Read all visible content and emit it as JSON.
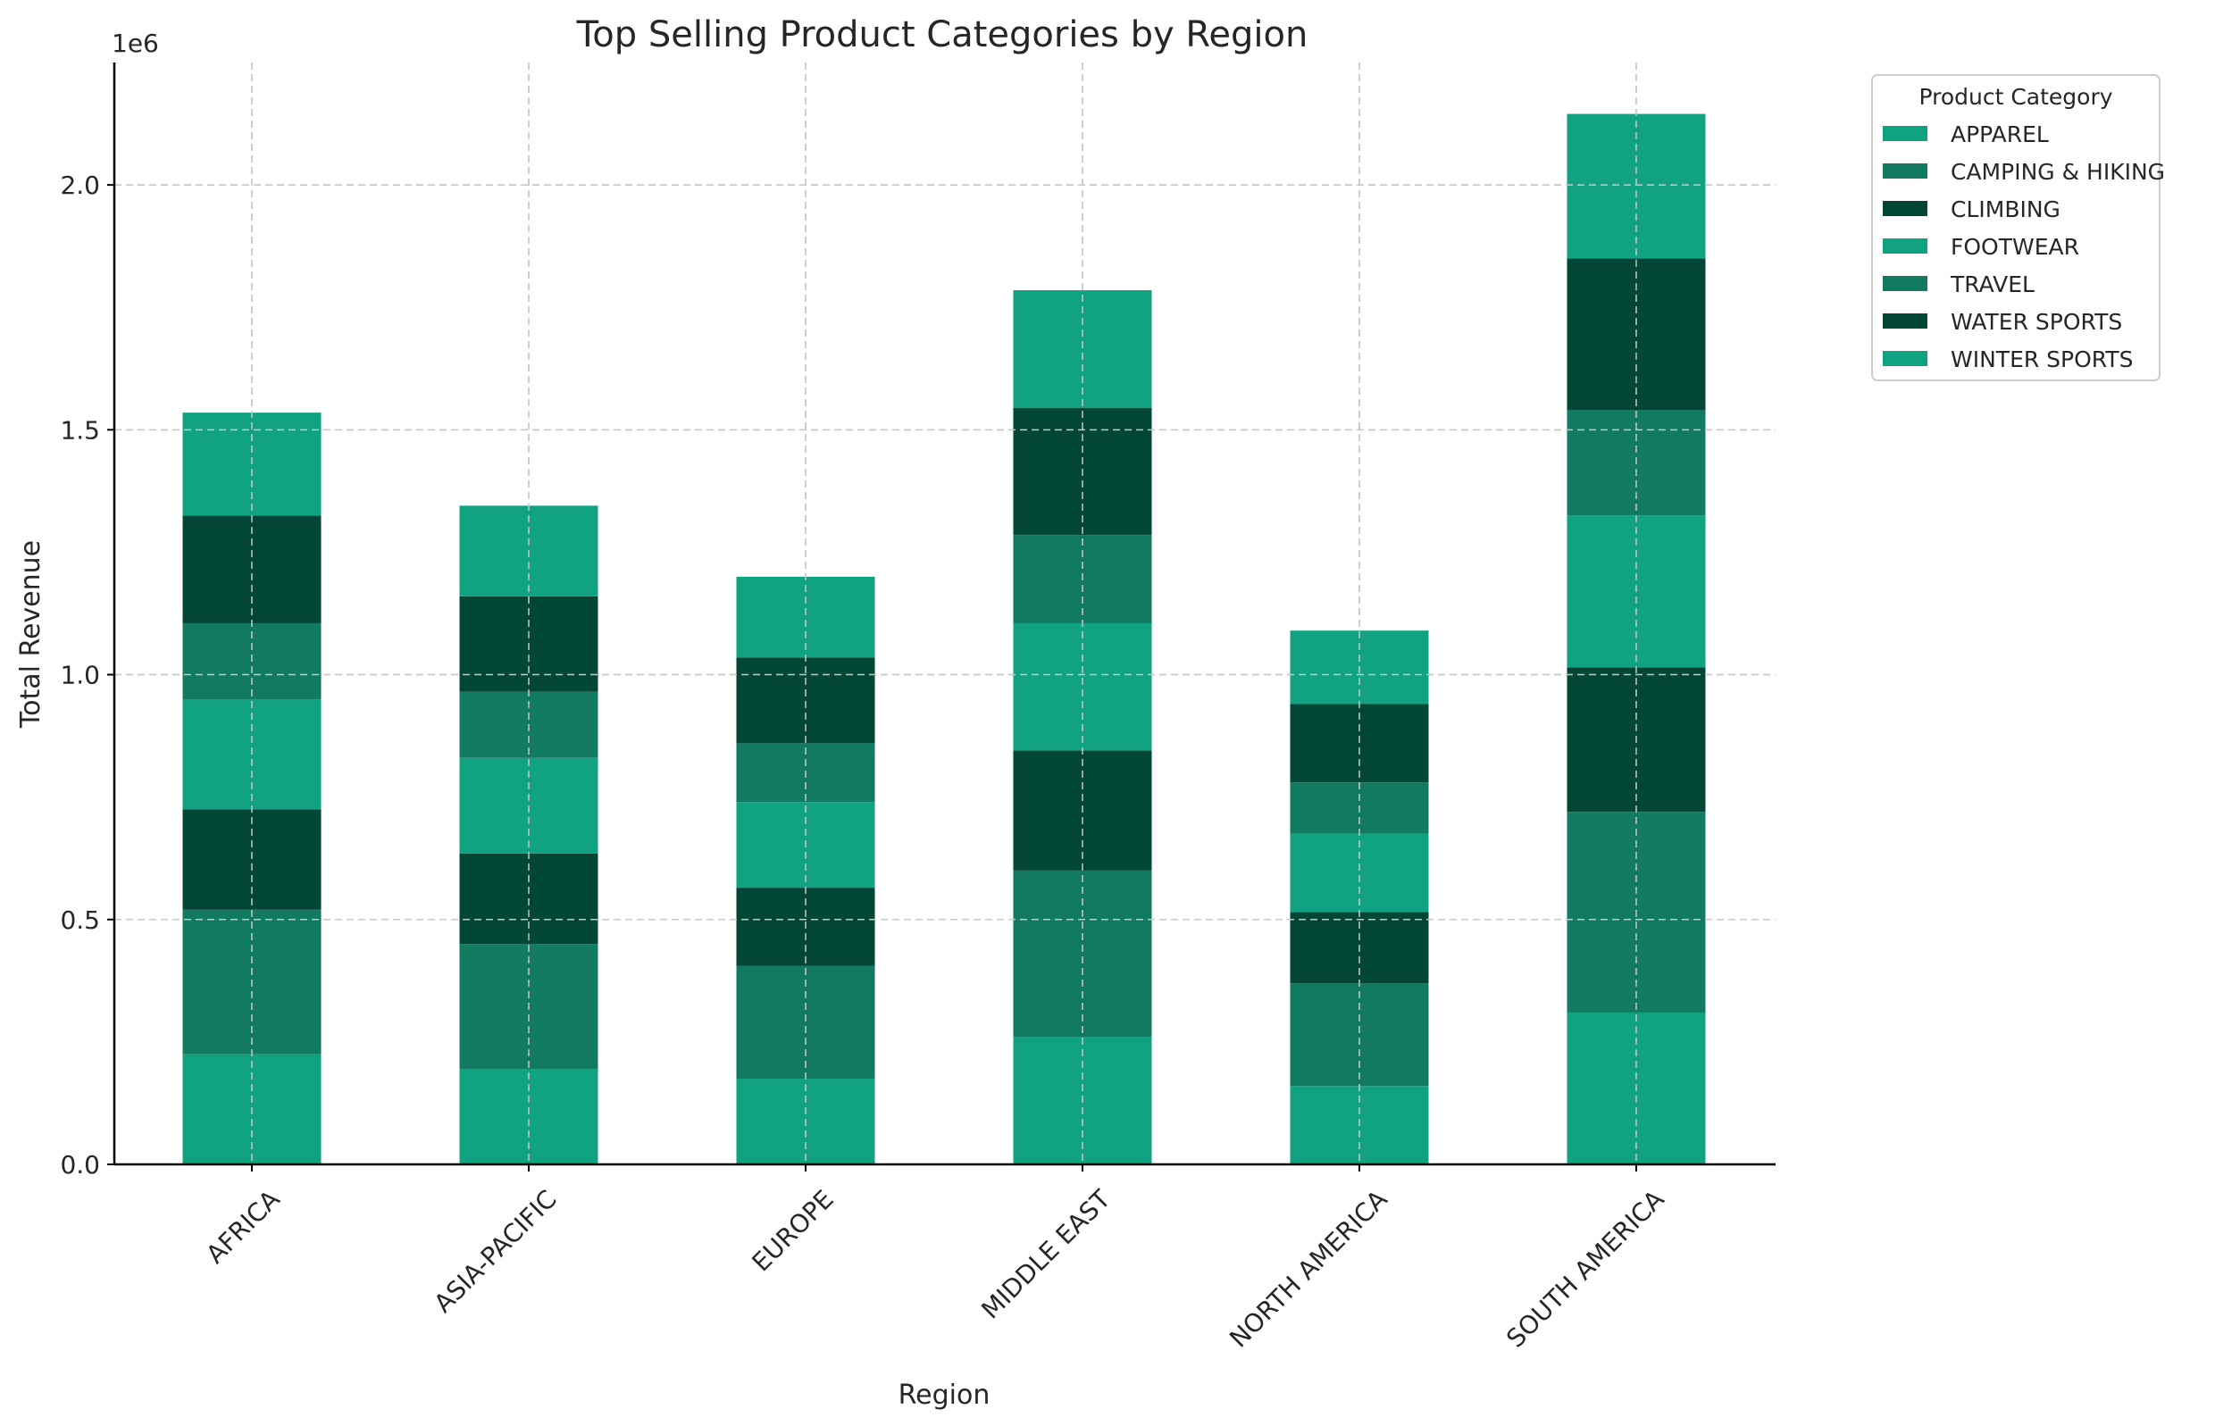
{
  "chart_data": {
    "type": "bar",
    "stacked": true,
    "title": "Top Selling Product Categories by Region",
    "xlabel": "Region",
    "ylabel": "Total Revenue",
    "y_multiplier_label": "1e6",
    "ylim": [
      0,
      2250000
    ],
    "yticks": [
      0,
      500000,
      1000000,
      1500000,
      2000000
    ],
    "ytick_labels": [
      "0.0",
      "0.5",
      "1.0",
      "1.5",
      "2.0"
    ],
    "grid": true,
    "legend_title": "Product Category",
    "legend_position": "outside-top-right",
    "categories": [
      "AFRICA",
      "ASIA-PACIFIC",
      "EUROPE",
      "MIDDLE EAST",
      "NORTH AMERICA",
      "SOUTH AMERICA"
    ],
    "series": [
      {
        "name": "APPAREL",
        "color": "#11a381",
        "values": [
          225000,
          195000,
          175000,
          260000,
          160000,
          310000
        ]
      },
      {
        "name": "CAMPING & HIKING",
        "color": "#137a62",
        "values": [
          295000,
          255000,
          230000,
          340000,
          210000,
          410000
        ]
      },
      {
        "name": "CLIMBING",
        "color": "#024735",
        "values": [
          205000,
          185000,
          160000,
          245000,
          145000,
          295000
        ]
      },
      {
        "name": "FOOTWEAR",
        "color": "#11a381",
        "values": [
          225000,
          195000,
          175000,
          260000,
          160000,
          310000
        ]
      },
      {
        "name": "TRAVEL",
        "color": "#137a62",
        "values": [
          155000,
          135000,
          120000,
          180000,
          105000,
          215000
        ]
      },
      {
        "name": "WATER SPORTS",
        "color": "#024735",
        "values": [
          220000,
          195000,
          175000,
          260000,
          160000,
          310000
        ]
      },
      {
        "name": "WINTER SPORTS",
        "color": "#11a381",
        "values": [
          210000,
          185000,
          165000,
          240000,
          150000,
          295000
        ]
      }
    ]
  }
}
